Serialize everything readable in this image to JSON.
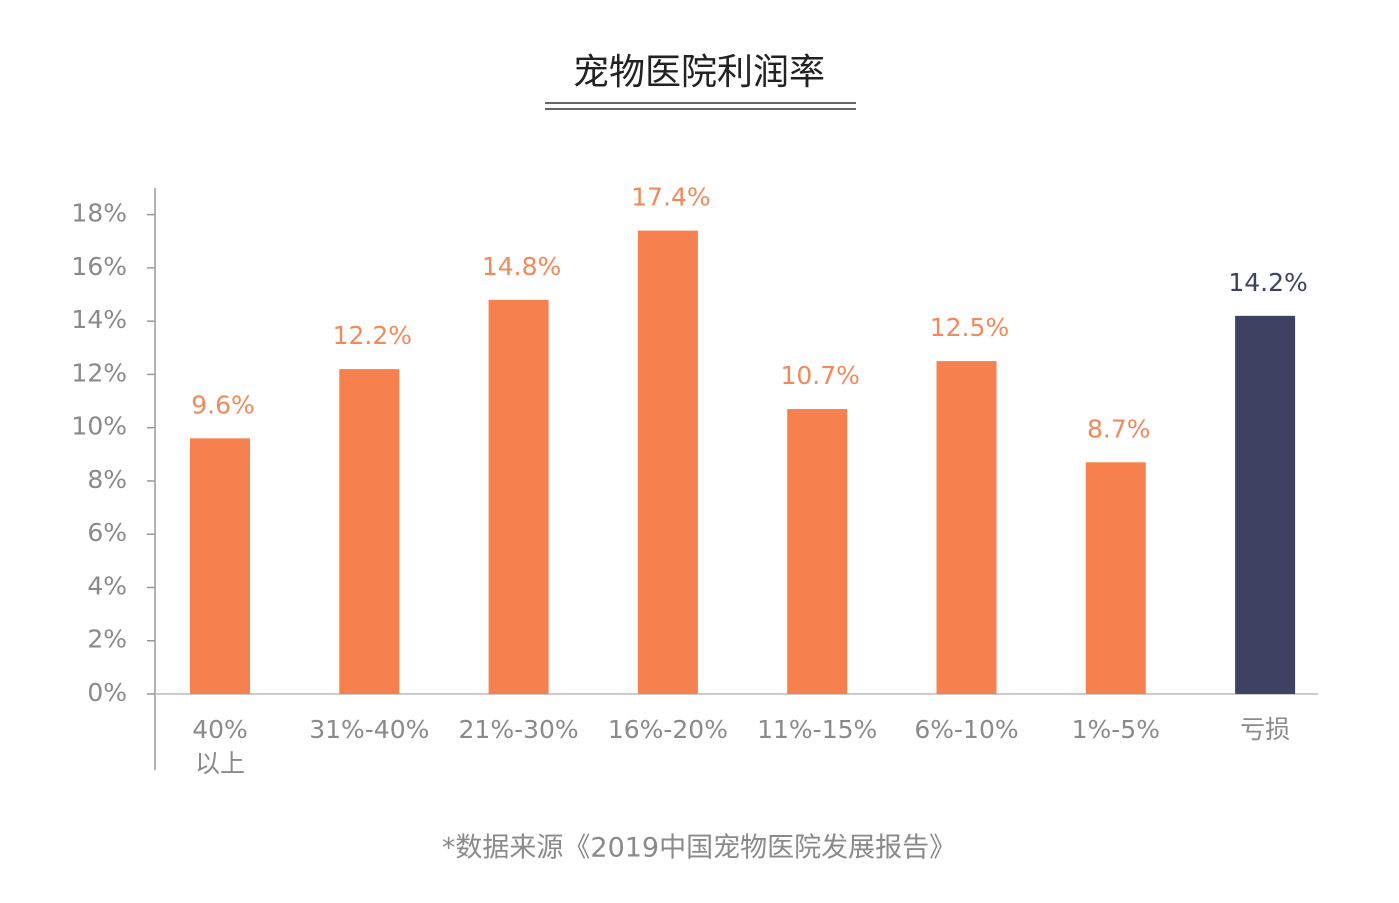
{
  "chart_data": {
    "type": "bar",
    "title": "宠物医院利润率",
    "categories": [
      "40%\n以上",
      "31%-40%",
      "21%-30%",
      "16%-20%",
      "11%-15%",
      "6%-10%",
      "1%-5%",
      "亏损"
    ],
    "values": [
      9.6,
      12.2,
      14.8,
      17.4,
      10.7,
      12.5,
      8.7,
      14.2
    ],
    "value_labels": [
      "9.6%",
      "12.2%",
      "14.8%",
      "17.4%",
      "10.7%",
      "12.5%",
      "8.7%",
      "14.2%"
    ],
    "colors": [
      "#f7814e",
      "#f7814e",
      "#f7814e",
      "#f7814e",
      "#f7814e",
      "#f7814e",
      "#f7814e",
      "#3d4262"
    ],
    "ylim": [
      0,
      19
    ],
    "yticks": [
      {
        "value": 0,
        "label": "0%"
      },
      {
        "value": 2,
        "label": "2%"
      },
      {
        "value": 4,
        "label": "4%"
      },
      {
        "value": 6,
        "label": "6%"
      },
      {
        "value": 8,
        "label": "8%"
      },
      {
        "value": 10,
        "label": "10%"
      },
      {
        "value": 12,
        "label": "12%"
      },
      {
        "value": 14,
        "label": "14%"
      },
      {
        "value": 16,
        "label": "16%"
      },
      {
        "value": 18,
        "label": "18%"
      }
    ],
    "grid": false,
    "note": "*数据来源《2019中国宠物医院发展报告》"
  }
}
